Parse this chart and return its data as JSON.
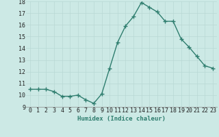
{
  "x": [
    0,
    1,
    2,
    3,
    4,
    5,
    6,
    7,
    8,
    9,
    10,
    11,
    12,
    13,
    14,
    15,
    16,
    17,
    18,
    19,
    20,
    21,
    22,
    23
  ],
  "y": [
    10.5,
    10.5,
    10.5,
    10.3,
    9.9,
    9.9,
    10.0,
    9.6,
    9.3,
    10.1,
    12.3,
    14.5,
    15.9,
    16.7,
    17.9,
    17.5,
    17.1,
    16.3,
    16.3,
    14.8,
    14.1,
    13.3,
    12.5,
    12.3
  ],
  "line_color": "#2e7d6e",
  "marker": "+",
  "background_color": "#cce9e5",
  "grid_color": "#b8d8d4",
  "xlabel": "Humidex (Indice chaleur)",
  "ylim": [
    9,
    18
  ],
  "xlim_min": -0.5,
  "xlim_max": 23.5,
  "yticks": [
    9,
    10,
    11,
    12,
    13,
    14,
    15,
    16,
    17,
    18
  ],
  "xticks": [
    0,
    1,
    2,
    3,
    4,
    5,
    6,
    7,
    8,
    9,
    10,
    11,
    12,
    13,
    14,
    15,
    16,
    17,
    18,
    19,
    20,
    21,
    22,
    23
  ],
  "xlabel_fontsize": 6.5,
  "tick_fontsize": 6,
  "line_width": 1.0,
  "marker_size": 4
}
